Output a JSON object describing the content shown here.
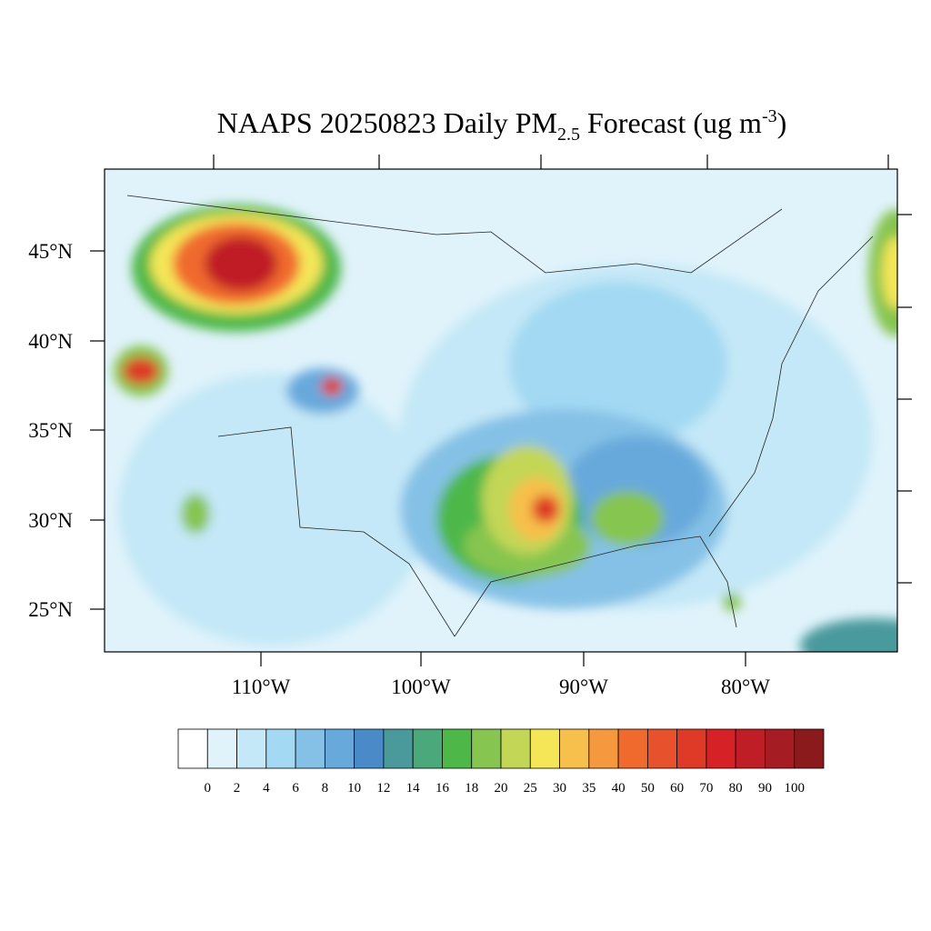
{
  "title": {
    "main": "NAAPS 20250823 Daily PM",
    "sub": "2.5",
    "rest": " Forecast (ug m",
    "sup": "-3",
    "end": ")"
  },
  "lat_labels": [
    "45°N",
    "40°N",
    "35°N",
    "30°N",
    "25°N"
  ],
  "lon_labels": [
    "110°W",
    "100°W",
    "90°W",
    "80°W"
  ],
  "colorbar": {
    "labels": [
      0,
      2,
      4,
      6,
      8,
      10,
      12,
      14,
      16,
      18,
      20,
      25,
      30,
      35,
      40,
      50,
      60,
      70,
      80,
      90,
      100
    ],
    "colors": [
      "#ffffff",
      "#e0f3fb",
      "#c4e8f7",
      "#a3d9f3",
      "#85c1e6",
      "#68a9dc",
      "#4a8ac8",
      "#4a9a9c",
      "#4aa87a",
      "#4db848",
      "#86c54f",
      "#c3d656",
      "#f5e658",
      "#f7bf4b",
      "#f5983e",
      "#f06a2e",
      "#e7512b",
      "#de3a27",
      "#d62127",
      "#c01e26",
      "#a51c22",
      "#8b1a1d"
    ]
  }
}
